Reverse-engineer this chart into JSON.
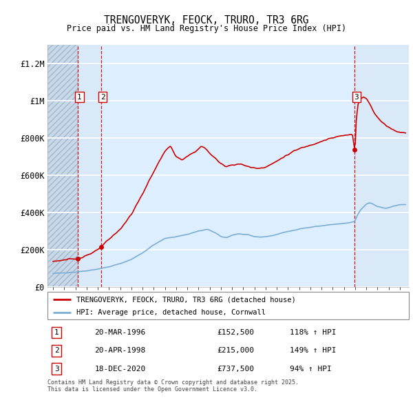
{
  "title": "TRENGOVERYK, FEOCK, TRURO, TR3 6RG",
  "subtitle": "Price paid vs. HM Land Registry's House Price Index (HPI)",
  "legend_line1": "TRENGOVERYK, FEOCK, TRURO, TR3 6RG (detached house)",
  "legend_line2": "HPI: Average price, detached house, Cornwall",
  "transactions": [
    {
      "num": 1,
      "date": "20-MAR-1996",
      "year": 1996.21,
      "price": 152500,
      "pct": "118% ↑ HPI"
    },
    {
      "num": 2,
      "date": "20-APR-1998",
      "year": 1998.29,
      "price": 215000,
      "pct": "149% ↑ HPI"
    },
    {
      "num": 3,
      "date": "18-DEC-2020",
      "year": 2020.96,
      "price": 737500,
      "pct": "94% ↑ HPI"
    }
  ],
  "footer": "Contains HM Land Registry data © Crown copyright and database right 2025.\nThis data is licensed under the Open Government Licence v3.0.",
  "red_color": "#cc0000",
  "blue_color": "#7aaed6",
  "background_hatch_color": "#c8d8e8",
  "background_plain_color": "#ddeeff",
  "grid_color": "#ffffff",
  "ylim": [
    0,
    1300000
  ],
  "yticks": [
    0,
    200000,
    400000,
    600000,
    800000,
    1000000,
    1200000
  ],
  "ytick_labels": [
    "£0",
    "£200K",
    "£400K",
    "£600K",
    "£800K",
    "£1M",
    "£1.2M"
  ],
  "xmin": 1993.5,
  "xmax": 2025.8,
  "label_box_positions": [
    {
      "num": 1,
      "bx": 1996.21,
      "by": 1020000
    },
    {
      "num": 2,
      "bx": 1998.29,
      "by": 1020000
    },
    {
      "num": 3,
      "bx": 2020.96,
      "by": 1020000
    }
  ]
}
